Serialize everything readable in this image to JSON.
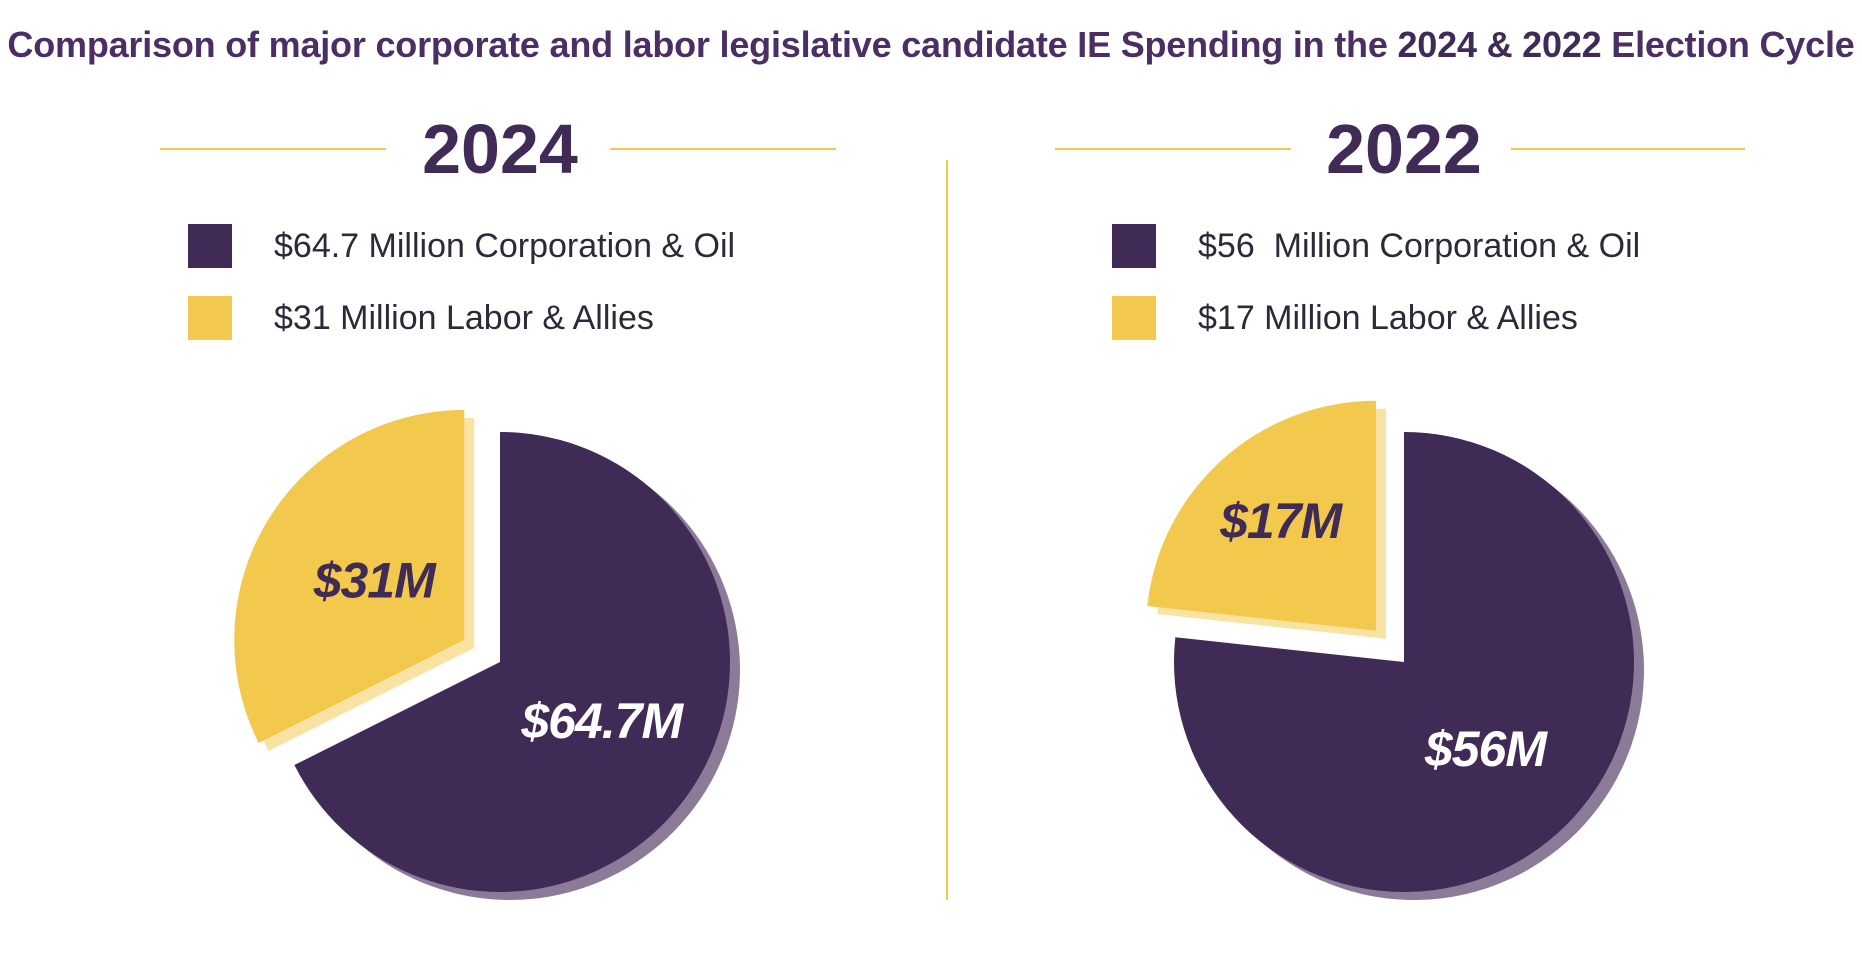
{
  "title": {
    "prefix": "Comparison of major corporate and labor legislative candidate IE Spending in the ",
    "years": "2024 & 2022",
    "suffix": " Election Cycle"
  },
  "colors": {
    "corporation": "#3f2b56",
    "corporation_shadow": "#8b7b98",
    "labor": "#f2c94c",
    "labor_shadow": "#f9e3a2",
    "rule": "#f2c94c"
  },
  "chart_data": [
    {
      "type": "pie",
      "title": "2024",
      "legend": [
        {
          "label": "$64.7 Million Corporation & Oil",
          "color": "#3f2b56"
        },
        {
          "label": "$31 Million Labor & Allies",
          "color": "#f2c94c"
        }
      ],
      "slices": [
        {
          "name": "Corporation & Oil",
          "value": 64.7,
          "label": "$64.7M",
          "color": "#3f2b56",
          "label_color": "#ffffff"
        },
        {
          "name": "Labor & Allies",
          "value": 31,
          "label": "$31M",
          "color": "#f2c94c",
          "label_color": "#3f2b56"
        }
      ],
      "units": "Million"
    },
    {
      "type": "pie",
      "title": "2022",
      "legend": [
        {
          "label": "$56  Million Corporation & Oil",
          "color": "#3f2b56"
        },
        {
          "label": "$17 Million Labor & Allies",
          "color": "#f2c94c"
        }
      ],
      "slices": [
        {
          "name": "Corporation & Oil",
          "value": 56,
          "label": "$56M",
          "color": "#3f2b56",
          "label_color": "#ffffff"
        },
        {
          "name": "Labor & Allies",
          "value": 17,
          "label": "$17M",
          "color": "#f2c94c",
          "label_color": "#3f2b56"
        }
      ],
      "units": "Million"
    }
  ]
}
